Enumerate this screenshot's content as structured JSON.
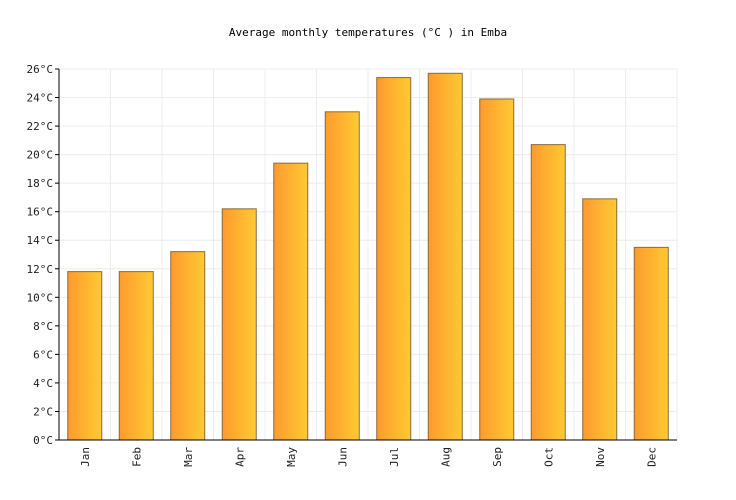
{
  "chart_data": {
    "type": "bar",
    "title": "Average monthly temperatures (°C ) in Emba",
    "categories": [
      "Jan",
      "Feb",
      "Mar",
      "Apr",
      "May",
      "Jun",
      "Jul",
      "Aug",
      "Sep",
      "Oct",
      "Nov",
      "Dec"
    ],
    "values": [
      11.8,
      11.8,
      13.2,
      16.2,
      19.4,
      23.0,
      25.4,
      25.7,
      23.9,
      20.7,
      16.9,
      13.5
    ],
    "ylim": [
      0,
      26
    ],
    "ytick_step": 2,
    "ytick_suffix": "°C",
    "grid": true,
    "bar_color_start": "#ff9a2e",
    "bar_color_end": "#ffca33",
    "bar_stroke": "#8a6a3a"
  }
}
